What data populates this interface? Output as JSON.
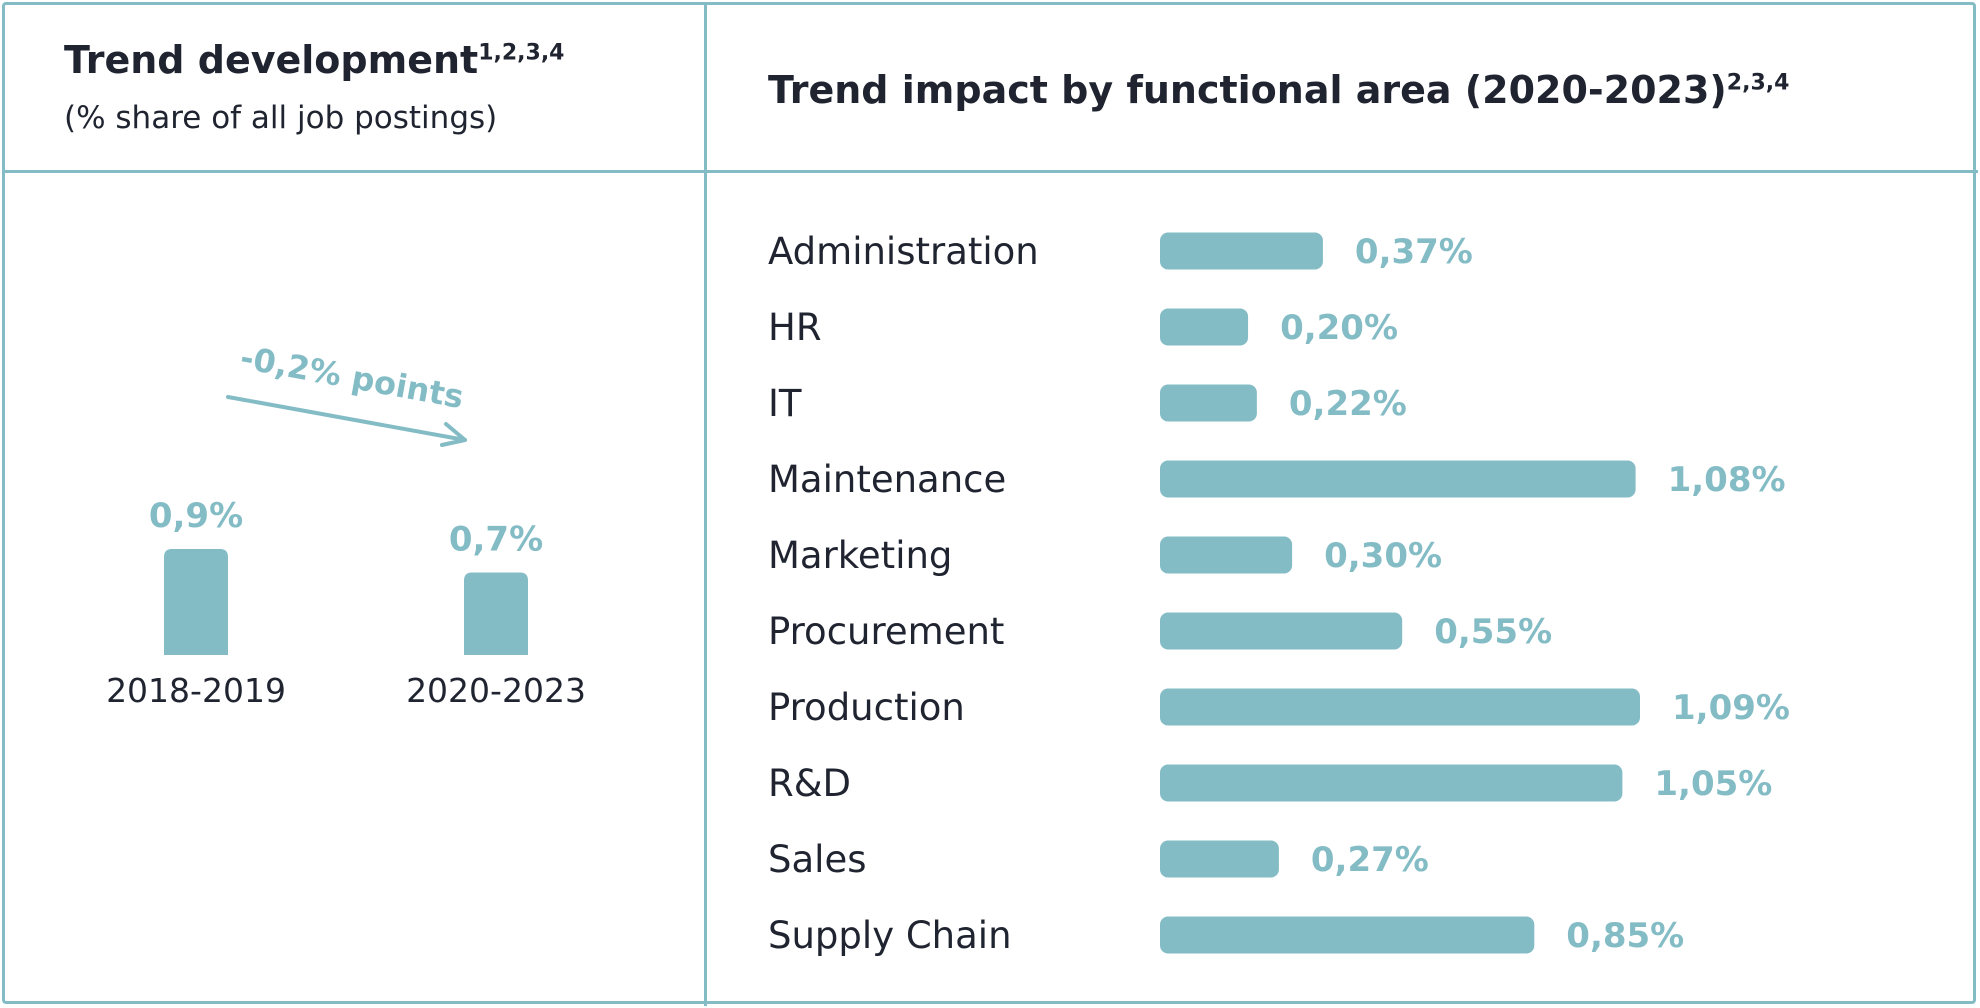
{
  "left": {
    "title": "Trend development",
    "title_sup": "1,2,3,4",
    "subtitle": "(% share of all job postings)"
  },
  "right": {
    "title": "Trend impact by functional area (2020-2023)",
    "title_sup": "2,3,4"
  },
  "chart_data": [
    {
      "type": "bar",
      "categories": [
        "2018-2019",
        "2020-2023"
      ],
      "values": [
        0.9,
        0.7
      ],
      "value_labels": [
        "0,9%",
        "0,7%"
      ],
      "annotation": "-0,2% points",
      "unit": "%",
      "color": "#84bcc6"
    },
    {
      "type": "bar",
      "orientation": "horizontal",
      "categories": [
        "Administration",
        "HR",
        "IT",
        "Maintenance",
        "Marketing",
        "Procurement",
        "Production",
        "R&D",
        "Sales",
        "Supply Chain"
      ],
      "values": [
        0.37,
        0.2,
        0.22,
        1.08,
        0.3,
        0.55,
        1.09,
        1.05,
        0.27,
        0.85
      ],
      "value_labels": [
        "0,37%",
        "0,20%",
        "0,22%",
        "1,08%",
        "0,30%",
        "0,55%",
        "1,09%",
        "1,05%",
        "0,27%",
        "0,85%"
      ],
      "unit": "%",
      "color": "#84bcc6"
    }
  ]
}
